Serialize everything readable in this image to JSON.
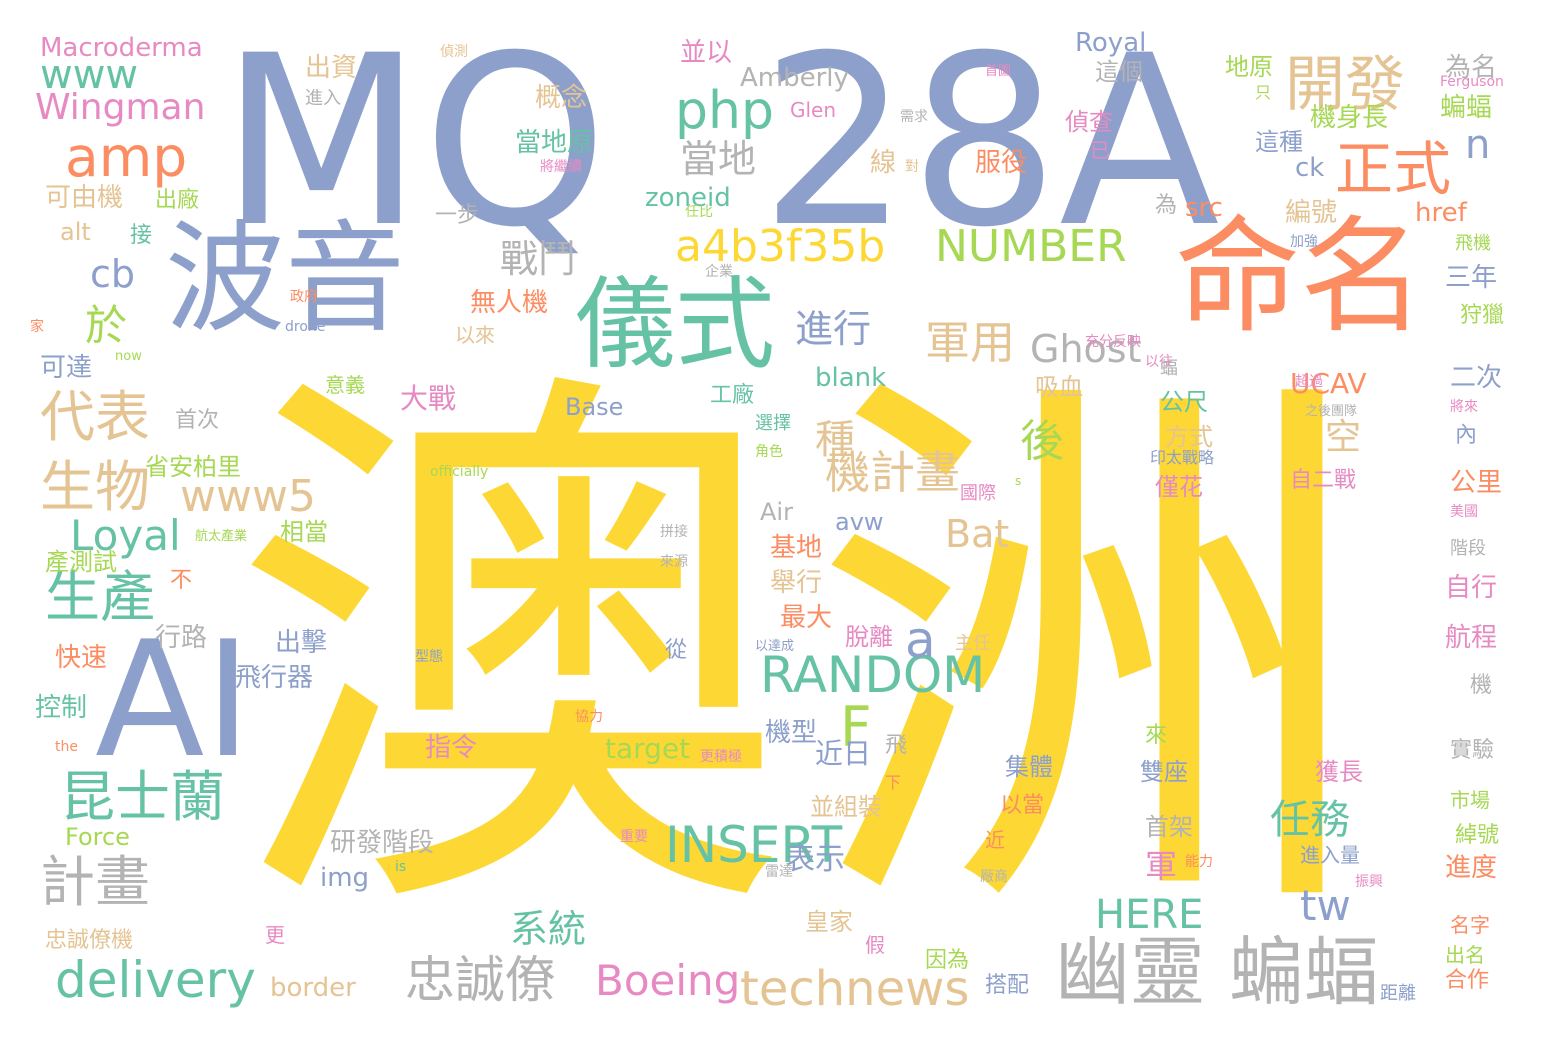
{
  "palette": {
    "yellow": "#fdd835",
    "blue": "#8da0cb",
    "orange": "#fc8d62",
    "green": "#66c2a5",
    "lime": "#a6d854",
    "pink": "#e78ac3",
    "tan": "#e5c494",
    "gray": "#b3b3b3"
  },
  "words": [
    {
      "text": "澳洲",
      "color": "yellow",
      "icon": ""
    },
    {
      "text": "MQ",
      "color": "blue"
    },
    {
      "text": "28A",
      "color": "blue"
    },
    {
      "text": "命名",
      "color": "orange"
    },
    {
      "text": "波音",
      "color": "blue"
    },
    {
      "text": "AI",
      "color": "blue"
    },
    {
      "text": "儀式",
      "color": "green"
    },
    {
      "text": "開發",
      "color": "tan"
    },
    {
      "text": "正式",
      "color": "orange"
    },
    {
      "text": "amp",
      "color": "orange"
    },
    {
      "text": "www",
      "color": "green"
    },
    {
      "text": "Wingman",
      "color": "pink"
    },
    {
      "text": "Macroderma",
      "color": "pink"
    },
    {
      "text": "php",
      "color": "green"
    },
    {
      "text": "a4b3f35b",
      "color": "yellow"
    },
    {
      "text": "NUMBER",
      "color": "lime"
    },
    {
      "text": "幽靈 蝙蝠",
      "color": "gray"
    },
    {
      "text": "RANDOM",
      "color": "green"
    },
    {
      "text": "INSERT",
      "color": "green"
    },
    {
      "text": "technews",
      "color": "tan"
    },
    {
      "text": "delivery",
      "color": "green"
    },
    {
      "text": "忠誠僚",
      "color": "gray"
    },
    {
      "text": "計畫",
      "color": "gray"
    },
    {
      "text": "昆士蘭",
      "color": "green"
    },
    {
      "text": "代表",
      "color": "tan"
    },
    {
      "text": "生物",
      "color": "tan"
    },
    {
      "text": "生產",
      "color": "green"
    },
    {
      "text": "於",
      "color": "lime"
    },
    {
      "text": "cb",
      "color": "blue"
    },
    {
      "text": "Loyal",
      "color": "green"
    },
    {
      "text": "www5",
      "color": "tan"
    },
    {
      "text": "機計畫",
      "color": "tan"
    },
    {
      "text": "種",
      "color": "tan"
    },
    {
      "text": "軍用",
      "color": "tan"
    },
    {
      "text": "Ghost",
      "color": "gray"
    },
    {
      "text": "進行",
      "color": "blue"
    },
    {
      "text": "戰鬥",
      "color": "gray"
    },
    {
      "text": "當地",
      "color": "gray"
    },
    {
      "text": "後",
      "color": "lime"
    },
    {
      "text": "a",
      "color": "blue"
    },
    {
      "text": "F",
      "color": "lime"
    },
    {
      "text": "Bat",
      "color": "tan"
    },
    {
      "text": "任務",
      "color": "green"
    },
    {
      "text": "tw",
      "color": "blue"
    },
    {
      "text": "HERE",
      "color": "green"
    },
    {
      "text": "系統",
      "color": "green"
    },
    {
      "text": "Boeing",
      "color": "pink"
    },
    {
      "text": "n",
      "color": "blue"
    },
    {
      "text": "Royal",
      "color": "blue"
    },
    {
      "text": "Amberly",
      "color": "gray"
    },
    {
      "text": "概念",
      "color": "tan"
    },
    {
      "text": "當地原",
      "color": "green"
    },
    {
      "text": "zoneid",
      "color": "green"
    },
    {
      "text": "src",
      "color": "orange"
    },
    {
      "text": "href",
      "color": "orange"
    },
    {
      "text": "ck",
      "color": "blue"
    },
    {
      "text": "blank",
      "color": "green"
    },
    {
      "text": "UCAV",
      "color": "orange"
    },
    {
      "text": "Base",
      "color": "blue"
    },
    {
      "text": "avw",
      "color": "blue"
    },
    {
      "text": "Air",
      "color": "gray"
    },
    {
      "text": "target",
      "color": "lime"
    },
    {
      "text": "img",
      "color": "blue"
    },
    {
      "text": "border",
      "color": "tan"
    },
    {
      "text": "Force",
      "color": "lime"
    },
    {
      "text": "alt",
      "color": "tan"
    },
    {
      "text": "Glen",
      "color": "pink"
    },
    {
      "text": "出資",
      "color": "tan"
    },
    {
      "text": "進入",
      "color": "gray"
    },
    {
      "text": "並以",
      "color": "pink"
    },
    {
      "text": "機身長",
      "color": "lime"
    },
    {
      "text": "蝙蝠",
      "color": "lime"
    },
    {
      "text": "為名",
      "color": "gray"
    },
    {
      "text": "這個",
      "color": "gray"
    },
    {
      "text": "偵查",
      "color": "pink"
    },
    {
      "text": "地原",
      "color": "lime"
    },
    {
      "text": "服役",
      "color": "orange"
    },
    {
      "text": "線",
      "color": "tan"
    },
    {
      "text": "這種",
      "color": "blue"
    },
    {
      "text": "編號",
      "color": "tan"
    },
    {
      "text": "可由機",
      "color": "tan"
    },
    {
      "text": "出廠",
      "color": "lime"
    },
    {
      "text": "接",
      "color": "green"
    },
    {
      "text": "可達",
      "color": "blue"
    },
    {
      "text": "無人機",
      "color": "orange"
    },
    {
      "text": "以來",
      "color": "tan"
    },
    {
      "text": "意義",
      "color": "lime"
    },
    {
      "text": "大戰",
      "color": "pink"
    },
    {
      "text": "首次",
      "color": "gray"
    },
    {
      "text": "省安柏里",
      "color": "lime"
    },
    {
      "text": "相當",
      "color": "lime"
    },
    {
      "text": "產測試",
      "color": "lime"
    },
    {
      "text": "快速",
      "color": "orange"
    },
    {
      "text": "控制",
      "color": "green"
    },
    {
      "text": "行路",
      "color": "gray"
    },
    {
      "text": "出擊",
      "color": "blue"
    },
    {
      "text": "飛行器",
      "color": "blue"
    },
    {
      "text": "指令",
      "color": "pink"
    },
    {
      "text": "基地",
      "color": "orange"
    },
    {
      "text": "舉行",
      "color": "tan"
    },
    {
      "text": "最大",
      "color": "orange"
    },
    {
      "text": "機型",
      "color": "blue"
    },
    {
      "text": "近日",
      "color": "blue"
    },
    {
      "text": "並組裝",
      "color": "tan"
    },
    {
      "text": "研發階段",
      "color": "gray"
    },
    {
      "text": "表示",
      "color": "blue"
    },
    {
      "text": "軍",
      "color": "pink"
    },
    {
      "text": "皇家",
      "color": "tan"
    },
    {
      "text": "脫離",
      "color": "pink"
    },
    {
      "text": "公尺",
      "color": "green"
    },
    {
      "text": "方式",
      "color": "tan"
    },
    {
      "text": "僅花",
      "color": "pink"
    },
    {
      "text": "空",
      "color": "tan"
    },
    {
      "text": "吸血",
      "color": "tan"
    },
    {
      "text": "工廠",
      "color": "green"
    },
    {
      "text": "雙座",
      "color": "blue"
    },
    {
      "text": "集體",
      "color": "blue"
    },
    {
      "text": "以當",
      "color": "orange"
    },
    {
      "text": "獲長",
      "color": "pink"
    },
    {
      "text": "首架",
      "color": "gray"
    },
    {
      "text": "因為",
      "color": "lime"
    },
    {
      "text": "搭配",
      "color": "blue"
    },
    {
      "text": "忠誠僚機",
      "color": "tan"
    },
    {
      "text": "二次",
      "color": "blue"
    },
    {
      "text": "三年",
      "color": "blue"
    },
    {
      "text": "狩獵",
      "color": "lime"
    },
    {
      "text": "自二戰",
      "color": "pink"
    },
    {
      "text": "公里",
      "color": "orange"
    },
    {
      "text": "內",
      "color": "blue"
    },
    {
      "text": "自行",
      "color": "pink"
    },
    {
      "text": "航程",
      "color": "pink"
    },
    {
      "text": "市場",
      "color": "lime"
    },
    {
      "text": "進入量",
      "color": "blue"
    },
    {
      "text": "進度",
      "color": "orange"
    },
    {
      "text": "名字",
      "color": "orange"
    },
    {
      "text": "出名",
      "color": "lime"
    },
    {
      "text": "合作",
      "color": "orange"
    },
    {
      "text": "距離",
      "color": "blue"
    },
    {
      "text": "Ferguson",
      "color": "pink"
    },
    {
      "text": "只",
      "color": "lime"
    },
    {
      "text": "已",
      "color": "pink"
    },
    {
      "text": "偵測",
      "color": "tan"
    },
    {
      "text": "一步",
      "color": "gray"
    },
    {
      "text": "為",
      "color": "gray"
    },
    {
      "text": "任比",
      "color": "lime"
    },
    {
      "text": "企業",
      "color": "gray"
    },
    {
      "text": "政府",
      "color": "orange"
    },
    {
      "text": "drone",
      "color": "blue"
    },
    {
      "text": "now",
      "color": "lime"
    },
    {
      "text": "家",
      "color": "orange"
    },
    {
      "text": "充分反映",
      "color": "pink"
    },
    {
      "text": "以往",
      "color": "pink"
    },
    {
      "text": "超過",
      "color": "pink"
    },
    {
      "text": "蝠",
      "color": "gray"
    },
    {
      "text": "印太戰略",
      "color": "blue"
    },
    {
      "text": "國際",
      "color": "pink"
    },
    {
      "text": "選擇",
      "color": "green"
    },
    {
      "text": "角色",
      "color": "lime"
    },
    {
      "text": "officially",
      "color": "lime"
    },
    {
      "text": "航太產業",
      "color": "lime"
    },
    {
      "text": "拼接",
      "color": "gray"
    },
    {
      "text": "來源",
      "color": "gray"
    },
    {
      "text": "不",
      "color": "orange"
    },
    {
      "text": "以達成",
      "color": "blue"
    },
    {
      "text": "主任",
      "color": "tan"
    },
    {
      "text": "型態",
      "color": "blue"
    },
    {
      "text": "協力",
      "color": "orange"
    },
    {
      "text": "the",
      "color": "orange"
    },
    {
      "text": "更積極",
      "color": "pink"
    },
    {
      "text": "下",
      "color": "orange"
    },
    {
      "text": "重要",
      "color": "pink"
    },
    {
      "text": "能力",
      "color": "orange"
    },
    {
      "text": "雷達",
      "color": "gray"
    },
    {
      "text": "is",
      "color": "green"
    },
    {
      "text": "振興",
      "color": "pink"
    },
    {
      "text": "厰商",
      "color": "gray"
    },
    {
      "text": "更",
      "color": "pink"
    },
    {
      "text": "假",
      "color": "pink"
    },
    {
      "text": "近",
      "color": "orange"
    },
    {
      "text": "美國",
      "color": "pink"
    },
    {
      "text": "將來",
      "color": "pink"
    },
    {
      "text": "之後團隊",
      "color": "gray"
    },
    {
      "text": "加強",
      "color": "blue"
    },
    {
      "text": "飛機",
      "color": "lime"
    },
    {
      "text": "階段",
      "color": "gray"
    },
    {
      "text": "機",
      "color": "gray"
    },
    {
      "text": "實驗",
      "color": "gray"
    },
    {
      "text": "綽號",
      "color": "lime"
    },
    {
      "text": "來",
      "color": "lime"
    },
    {
      "text": "從",
      "color": "blue"
    },
    {
      "text": "飛",
      "color": "gray"
    },
    {
      "text": "需求",
      "color": "gray"
    },
    {
      "text": "對",
      "color": "tan"
    },
    {
      "text": "將繼續",
      "color": "pink"
    },
    {
      "text": "首圖",
      "color": "pink"
    },
    {
      "text": "s",
      "color": "lime"
    }
  ]
}
